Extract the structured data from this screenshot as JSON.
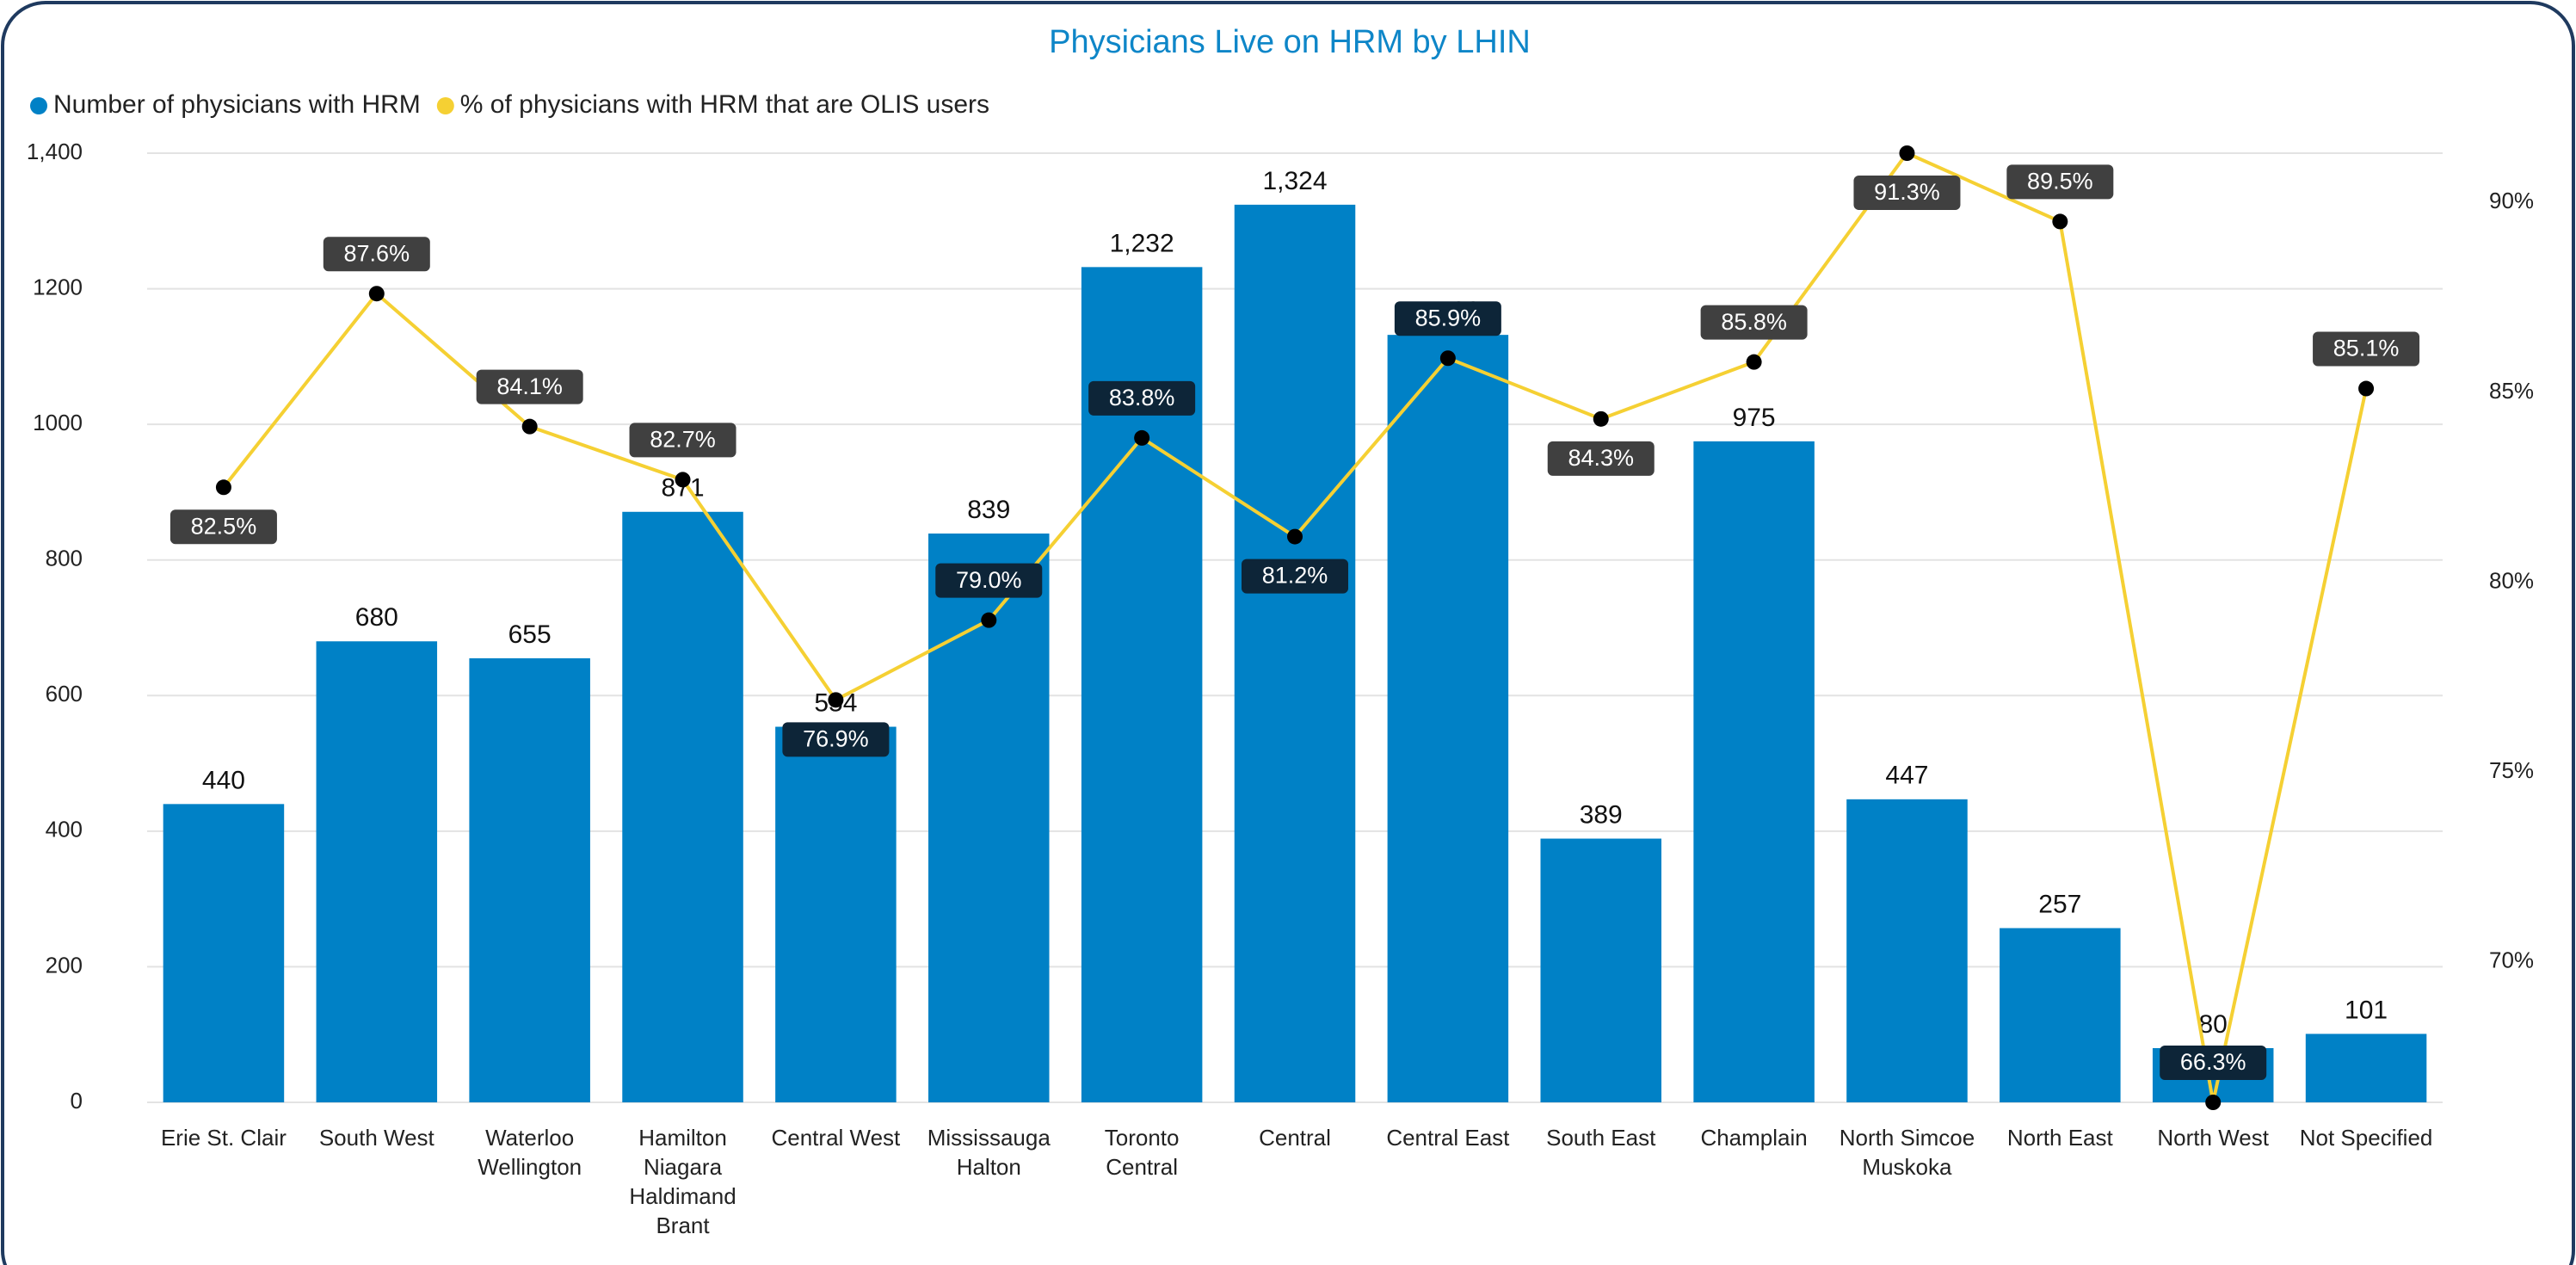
{
  "chart_data": {
    "type": "bar-line",
    "title": "Physicians Live on HRM by LHIN",
    "categories": [
      "Erie St. Clair",
      "South West",
      "Waterloo Wellington",
      "Hamilton Niagara Haldimand Brant",
      "Central West",
      "Mississauga Halton",
      "Toronto Central",
      "Central",
      "Central East",
      "South East",
      "Champlain",
      "North Simcoe Muskoka",
      "North East",
      "North West",
      "Not Specified"
    ],
    "series": [
      {
        "name": "Number of physicians with HRM",
        "color": "#0081c6",
        "type": "bar",
        "values": [
          440,
          680,
          655,
          871,
          554,
          839,
          1232,
          1324,
          1132,
          389,
          975,
          447,
          257,
          80,
          101
        ],
        "value_labels": [
          "440",
          "680",
          "655",
          "871",
          "554",
          "839",
          "1,232",
          "1,324",
          "1,132",
          "389",
          "975",
          "447",
          "257",
          "80",
          "101"
        ]
      },
      {
        "name": "% of physicians with HRM that are OLIS users",
        "color": "#f5d033",
        "type": "line",
        "axis": "y2",
        "values": [
          82.5,
          87.6,
          84.1,
          82.7,
          76.9,
          79.0,
          83.8,
          81.2,
          85.9,
          84.3,
          85.8,
          91.3,
          89.5,
          66.3,
          85.1
        ],
        "value_labels": [
          "82.5%",
          "87.6%",
          "84.1%",
          "82.7%",
          "76.9%",
          "79.0%",
          "83.8%",
          "81.2%",
          "85.9%",
          "84.3%",
          "85.8%",
          "91.3%",
          "89.5%",
          "66.3%",
          "85.1%"
        ]
      }
    ],
    "ylim": [
      0,
      1400
    ],
    "yticks": [
      0,
      200,
      400,
      600,
      800,
      1000,
      1200,
      {
        "value": 1400,
        "label": "1,400"
      }
    ],
    "y2lim": [
      66.3,
      91.3
    ],
    "y2ticks": [
      {
        "value": 70,
        "label": "70%"
      },
      {
        "value": 75,
        "label": "75%"
      },
      {
        "value": 80,
        "label": "80%"
      },
      {
        "value": 85,
        "label": "85%"
      },
      {
        "value": 90,
        "label": "90%"
      }
    ],
    "grid": true,
    "legend": "top-left"
  }
}
